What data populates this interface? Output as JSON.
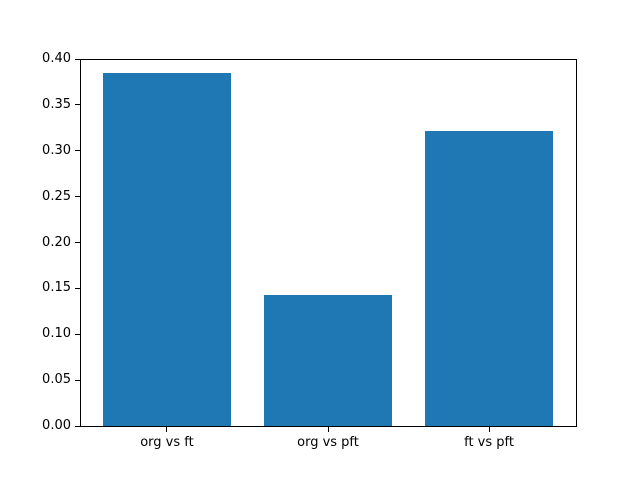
{
  "figure": {
    "background_color": "#ffffff",
    "spine_color": "#000000",
    "tick_text_color": "#000000"
  },
  "chart_data": {
    "type": "bar",
    "title": "",
    "xlabel": "",
    "ylabel": "",
    "categories": [
      "org vs ft",
      "org vs pft",
      "ft vs pft"
    ],
    "values": [
      0.385,
      0.143,
      0.322
    ],
    "bar_color": "#1f77b4",
    "ylim": [
      0.0,
      0.4
    ],
    "yticks": [
      0.0,
      0.05,
      0.1,
      0.15,
      0.2,
      0.25,
      0.3,
      0.35,
      0.4
    ],
    "ytick_labels": [
      "0.00",
      "0.05",
      "0.10",
      "0.15",
      "0.20",
      "0.25",
      "0.30",
      "0.35",
      "0.40"
    ],
    "grid": false,
    "legend": null,
    "bar_width_fraction": 0.8,
    "xlim": [
      -0.54,
      2.54
    ]
  }
}
